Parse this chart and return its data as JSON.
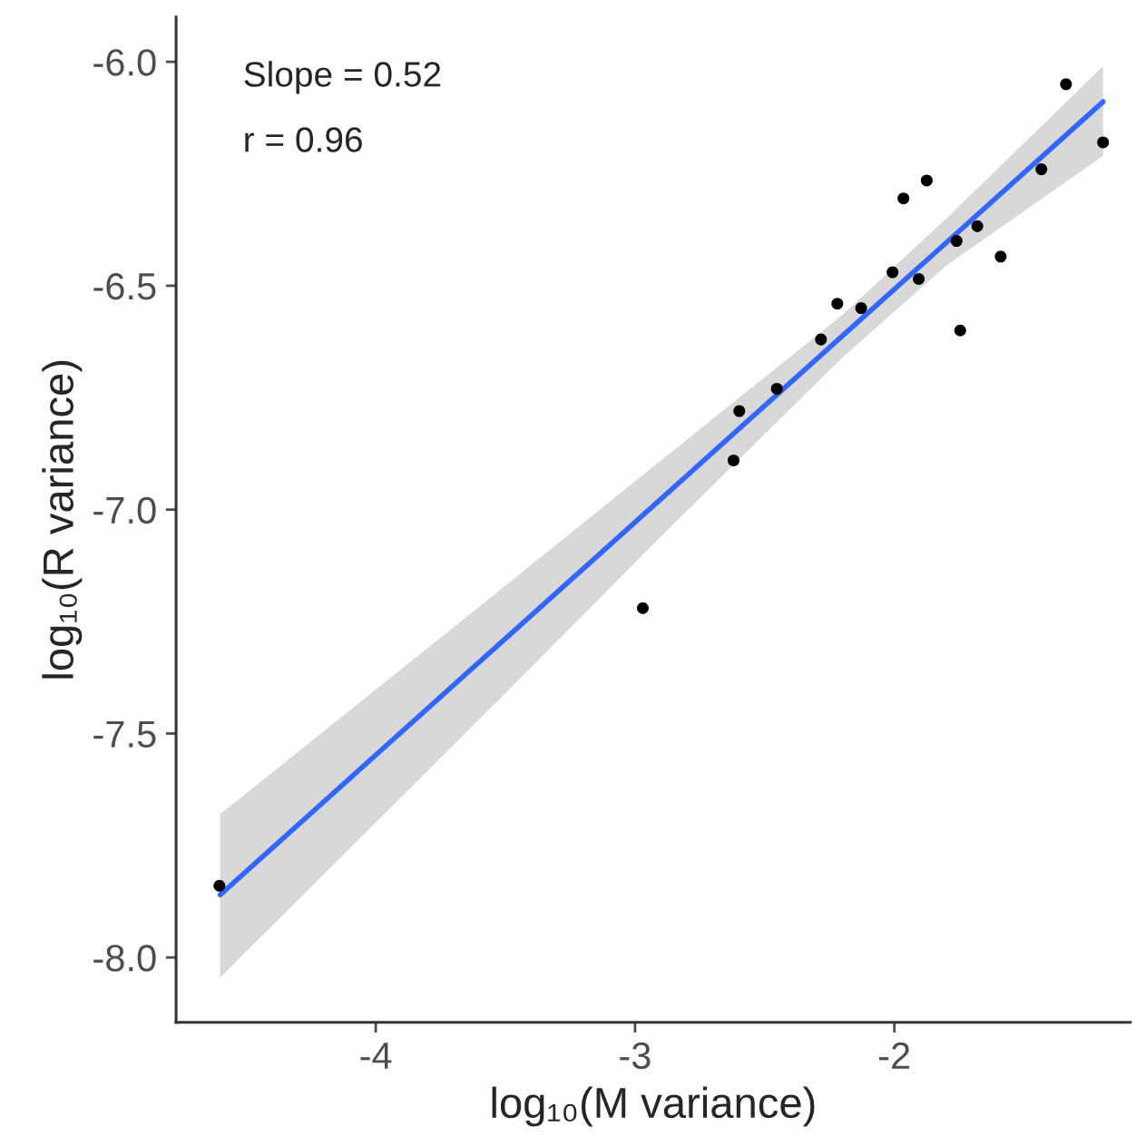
{
  "chart_data": {
    "type": "scatter",
    "xlabel": "log₁₀(M variance)",
    "ylabel": "log₁₀(R variance)",
    "annotations": [
      "Slope = 0.52",
      "r = 0.96"
    ],
    "xlim": [
      -4.77,
      -1.09
    ],
    "ylim": [
      -8.145,
      -5.9
    ],
    "xticks": [
      -4,
      -3,
      -2
    ],
    "yticks": [
      {
        "value": -8,
        "label": "-8.0"
      },
      {
        "value": -7.5,
        "label": "-7.5"
      },
      {
        "value": -7,
        "label": "-7.0"
      },
      {
        "value": -6.5,
        "label": "-6.5"
      },
      {
        "value": -6,
        "label": "-6.0"
      }
    ],
    "grid": false,
    "series": [
      {
        "marker": "circle",
        "color": "#000000",
        "x": [
          -1.338,
          -1.195,
          -1.433,
          -1.875,
          -1.965,
          -1.68,
          -1.76,
          -1.59,
          -2.007,
          -1.906,
          -2.22,
          -2.128,
          -1.746,
          -2.283,
          -2.453,
          -2.598,
          -2.62,
          -2.97,
          -4.603
        ],
        "values": [
          -6.05,
          -6.18,
          -6.24,
          -6.265,
          -6.305,
          -6.367,
          -6.4,
          -6.435,
          -6.47,
          -6.485,
          -6.54,
          -6.55,
          -6.6,
          -6.62,
          -6.73,
          -6.78,
          -6.89,
          -7.22,
          -7.84
        ]
      },
      {
        "type": "line",
        "color": "#3366ff",
        "x": [
          -4.6,
          -3.5,
          -2.9,
          -2.2,
          -1.8,
          -1.195
        ],
        "values": [
          -7.86,
          -7.288,
          -6.976,
          -6.612,
          -6.404,
          -6.089
        ],
        "lower": [
          -8.045,
          -7.41,
          -7.06,
          -6.66,
          -6.455,
          -6.21
        ],
        "upper": [
          -7.68,
          -7.17,
          -6.89,
          -6.565,
          -6.35,
          -6.01
        ]
      }
    ]
  }
}
